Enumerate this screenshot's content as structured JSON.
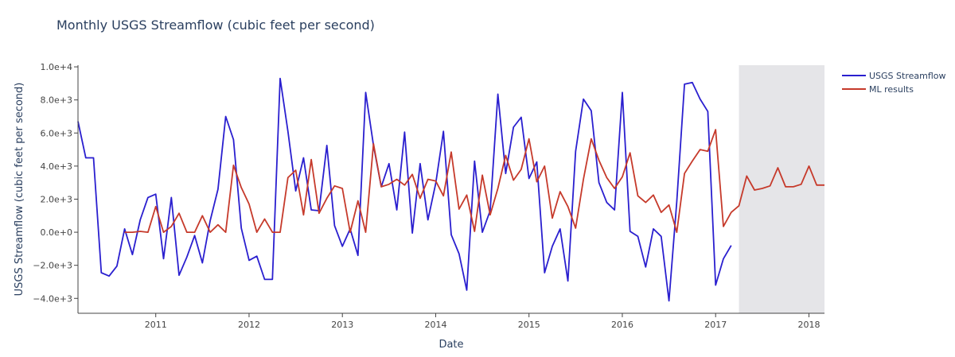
{
  "chart_data": {
    "type": "line",
    "title": "Monthly USGS Streamflow (cubic feet per second)",
    "xlabel": "Date",
    "ylabel": "USGS Streamflow (cubic feet per second)",
    "x_ticks": [
      "2011",
      "2012",
      "2013",
      "2014",
      "2015",
      "2016",
      "2017",
      "2018"
    ],
    "y_ticks": [
      "−4.0e+3",
      "−2.0e+3",
      "0.0e+0",
      "2.0e+3",
      "4.0e+3",
      "6.0e+3",
      "8.0e+3",
      "1.0e+4"
    ],
    "xlim": [
      "2010-03",
      "2018-03"
    ],
    "ylim": [
      -4900,
      10100
    ],
    "shaded_region": {
      "from": "2017-04",
      "to": "2018-03",
      "color": "#e5e5e8"
    },
    "grid": false,
    "legend_position": "top-right",
    "series": [
      {
        "name": "USGS Streamflow",
        "color": "#2a1fcf",
        "points": [
          [
            "2010-03",
            6700
          ],
          [
            "2010-04",
            4500
          ],
          [
            "2010-05",
            4500
          ],
          [
            "2010-06",
            -2450
          ],
          [
            "2010-07",
            -2650
          ],
          [
            "2010-08",
            -2050
          ],
          [
            "2010-09",
            200
          ],
          [
            "2010-10",
            -1350
          ],
          [
            "2010-11",
            750
          ],
          [
            "2010-12",
            2100
          ],
          [
            "2011-01",
            2300
          ],
          [
            "2011-02",
            -1600
          ],
          [
            "2011-03",
            2100
          ],
          [
            "2011-04",
            -2600
          ],
          [
            "2011-05",
            -1500
          ],
          [
            "2011-06",
            -200
          ],
          [
            "2011-07",
            -1850
          ],
          [
            "2011-08",
            700
          ],
          [
            "2011-09",
            2600
          ],
          [
            "2011-10",
            7000
          ],
          [
            "2011-11",
            5600
          ],
          [
            "2011-12",
            250
          ],
          [
            "2012-01",
            -1700
          ],
          [
            "2012-02",
            -1450
          ],
          [
            "2012-03",
            -2850
          ],
          [
            "2012-04",
            -2850
          ],
          [
            "2012-05",
            9300
          ],
          [
            "2012-06",
            6100
          ],
          [
            "2012-07",
            2500
          ],
          [
            "2012-08",
            4500
          ],
          [
            "2012-09",
            1350
          ],
          [
            "2012-10",
            1300
          ],
          [
            "2012-11",
            5250
          ],
          [
            "2012-12",
            400
          ],
          [
            "2013-01",
            -850
          ],
          [
            "2013-02",
            200
          ],
          [
            "2013-03",
            -1400
          ],
          [
            "2013-04",
            8450
          ],
          [
            "2013-05",
            5250
          ],
          [
            "2013-06",
            2750
          ],
          [
            "2013-07",
            4150
          ],
          [
            "2013-08",
            1350
          ],
          [
            "2013-09",
            6050
          ],
          [
            "2013-10",
            -50
          ],
          [
            "2013-11",
            4150
          ],
          [
            "2013-12",
            750
          ],
          [
            "2014-01",
            2950
          ],
          [
            "2014-02",
            6100
          ],
          [
            "2014-03",
            -150
          ],
          [
            "2014-04",
            -1300
          ],
          [
            "2014-05",
            -3500
          ],
          [
            "2014-06",
            4300
          ],
          [
            "2014-07",
            0
          ],
          [
            "2014-08",
            1300
          ],
          [
            "2014-09",
            8350
          ],
          [
            "2014-10",
            3550
          ],
          [
            "2014-11",
            6350
          ],
          [
            "2014-12",
            6950
          ],
          [
            "2015-01",
            3250
          ],
          [
            "2015-02",
            4250
          ],
          [
            "2015-03",
            -2450
          ],
          [
            "2015-04",
            -850
          ],
          [
            "2015-05",
            200
          ],
          [
            "2015-06",
            -2950
          ],
          [
            "2015-07",
            4900
          ],
          [
            "2015-08",
            8050
          ],
          [
            "2015-09",
            7350
          ],
          [
            "2015-10",
            3000
          ],
          [
            "2015-11",
            1800
          ],
          [
            "2015-12",
            1350
          ],
          [
            "2016-01",
            8450
          ],
          [
            "2016-02",
            50
          ],
          [
            "2016-03",
            -250
          ],
          [
            "2016-04",
            -2100
          ],
          [
            "2016-05",
            200
          ],
          [
            "2016-06",
            -250
          ],
          [
            "2016-07",
            -4150
          ],
          [
            "2016-08",
            1850
          ],
          [
            "2016-09",
            8950
          ],
          [
            "2016-10",
            9050
          ],
          [
            "2016-11",
            8050
          ],
          [
            "2016-12",
            7300
          ],
          [
            "2017-01",
            -3200
          ],
          [
            "2017-02",
            -1600
          ],
          [
            "2017-03",
            -800
          ]
        ]
      },
      {
        "name": "ML results",
        "color": "#c63a2b",
        "points": [
          [
            "2010-09",
            0
          ],
          [
            "2010-10",
            0
          ],
          [
            "2010-11",
            50
          ],
          [
            "2010-12",
            0
          ],
          [
            "2011-01",
            1550
          ],
          [
            "2011-02",
            0
          ],
          [
            "2011-03",
            350
          ],
          [
            "2011-04",
            1150
          ],
          [
            "2011-05",
            0
          ],
          [
            "2011-06",
            0
          ],
          [
            "2011-07",
            1000
          ],
          [
            "2011-08",
            0
          ],
          [
            "2011-09",
            450
          ],
          [
            "2011-10",
            0
          ],
          [
            "2011-11",
            4050
          ],
          [
            "2011-12",
            2700
          ],
          [
            "2012-01",
            1700
          ],
          [
            "2012-02",
            0
          ],
          [
            "2012-03",
            800
          ],
          [
            "2012-04",
            0
          ],
          [
            "2012-05",
            0
          ],
          [
            "2012-06",
            3300
          ],
          [
            "2012-07",
            3750
          ],
          [
            "2012-08",
            1050
          ],
          [
            "2012-09",
            4400
          ],
          [
            "2012-10",
            1150
          ],
          [
            "2012-11",
            2050
          ],
          [
            "2012-12",
            2800
          ],
          [
            "2013-01",
            2650
          ],
          [
            "2013-02",
            0
          ],
          [
            "2013-03",
            1900
          ],
          [
            "2013-04",
            0
          ],
          [
            "2013-05",
            5350
          ],
          [
            "2013-06",
            2750
          ],
          [
            "2013-07",
            2900
          ],
          [
            "2013-08",
            3200
          ],
          [
            "2013-09",
            2850
          ],
          [
            "2013-10",
            3500
          ],
          [
            "2013-11",
            2050
          ],
          [
            "2013-12",
            3200
          ],
          [
            "2014-01",
            3100
          ],
          [
            "2014-02",
            2200
          ],
          [
            "2014-03",
            4850
          ],
          [
            "2014-04",
            1400
          ],
          [
            "2014-05",
            2250
          ],
          [
            "2014-06",
            50
          ],
          [
            "2014-07",
            3450
          ],
          [
            "2014-08",
            1050
          ],
          [
            "2014-09",
            2650
          ],
          [
            "2014-10",
            4650
          ],
          [
            "2014-11",
            3150
          ],
          [
            "2014-12",
            3800
          ],
          [
            "2015-01",
            5650
          ],
          [
            "2015-02",
            3050
          ],
          [
            "2015-03",
            4000
          ],
          [
            "2015-04",
            850
          ],
          [
            "2015-05",
            2450
          ],
          [
            "2015-06",
            1550
          ],
          [
            "2015-07",
            250
          ],
          [
            "2015-08",
            3200
          ],
          [
            "2015-09",
            5650
          ],
          [
            "2015-10",
            4350
          ],
          [
            "2015-11",
            3300
          ],
          [
            "2015-12",
            2650
          ],
          [
            "2016-01",
            3350
          ],
          [
            "2016-02",
            4800
          ],
          [
            "2016-03",
            2200
          ],
          [
            "2016-04",
            1800
          ],
          [
            "2016-05",
            2250
          ],
          [
            "2016-06",
            1200
          ],
          [
            "2016-07",
            1650
          ],
          [
            "2016-08",
            0
          ],
          [
            "2016-09",
            3550
          ],
          [
            "2016-10",
            4300
          ],
          [
            "2016-11",
            5000
          ],
          [
            "2016-12",
            4900
          ],
          [
            "2017-01",
            6200
          ],
          [
            "2017-02",
            350
          ],
          [
            "2017-03",
            1200
          ],
          [
            "2017-04",
            1600
          ],
          [
            "2017-05",
            3400
          ],
          [
            "2017-06",
            2550
          ],
          [
            "2017-07",
            2650
          ],
          [
            "2017-08",
            2800
          ],
          [
            "2017-09",
            3900
          ],
          [
            "2017-10",
            2750
          ],
          [
            "2017-11",
            2750
          ],
          [
            "2017-12",
            2900
          ],
          [
            "2018-01",
            4000
          ],
          [
            "2018-02",
            2850
          ],
          [
            "2018-03",
            2850
          ]
        ]
      }
    ]
  }
}
